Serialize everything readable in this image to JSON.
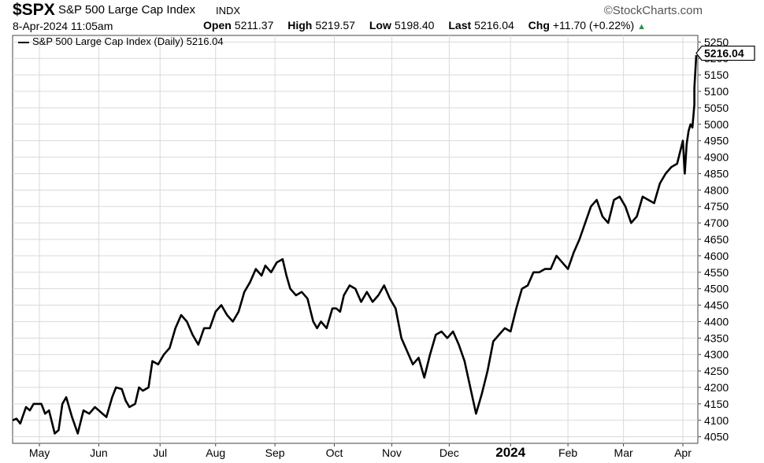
{
  "header": {
    "symbol": "$SPX",
    "name": "S&P 500 Large Cap Index",
    "exchange": "INDX",
    "brand": "©StockCharts.com",
    "date": "8-Apr-2024 11:05am",
    "open_label": "Open",
    "open": "5211.37",
    "high_label": "High",
    "high": "5219.57",
    "low_label": "Low",
    "low": "5198.40",
    "last_label": "Last",
    "last": "5216.04",
    "chg_label": "Chg",
    "chg": "+11.70 (+0.22%)"
  },
  "colors": {
    "line": "#000000",
    "grid": "#d9d9d9",
    "up_arrow": "#2e8b57"
  },
  "chart_data": {
    "type": "line",
    "legend": "S&P 500 Large Cap Index (Daily) 5216.04",
    "last_label": "5216.04",
    "ylim": [
      4030,
      5270
    ],
    "yticks": [
      4050,
      4100,
      4150,
      4200,
      4250,
      4300,
      4350,
      4400,
      4450,
      4500,
      4550,
      4600,
      4650,
      4700,
      4750,
      4800,
      4850,
      4900,
      4950,
      5000,
      5050,
      5100,
      5150,
      5200,
      5250
    ],
    "xlim": [
      "2023-04-17",
      "2024-04-08"
    ],
    "xticks": [
      {
        "label": "May",
        "date": "2023-05-01",
        "bold": false
      },
      {
        "label": "Jun",
        "date": "2023-06-01",
        "bold": false
      },
      {
        "label": "Jul",
        "date": "2023-07-03",
        "bold": false
      },
      {
        "label": "Aug",
        "date": "2023-08-01",
        "bold": false
      },
      {
        "label": "Sep",
        "date": "2023-09-01",
        "bold": false
      },
      {
        "label": "Oct",
        "date": "2023-10-02",
        "bold": false
      },
      {
        "label": "Nov",
        "date": "2023-11-01",
        "bold": false
      },
      {
        "label": "Dec",
        "date": "2023-12-01",
        "bold": false
      },
      {
        "label": "2024",
        "date": "2024-01-02",
        "bold": true
      },
      {
        "label": "Feb",
        "date": "2024-02-01",
        "bold": false
      },
      {
        "label": "Mar",
        "date": "2024-03-01",
        "bold": false
      },
      {
        "label": "Apr",
        "date": "2024-04-01",
        "bold": false
      }
    ],
    "series": [
      {
        "values": [
          [
            "2023-04-17",
            4100
          ],
          [
            "2023-04-19",
            4105
          ],
          [
            "2023-04-21",
            4090
          ],
          [
            "2023-04-24",
            4140
          ],
          [
            "2023-04-26",
            4130
          ],
          [
            "2023-04-28",
            4150
          ],
          [
            "2023-05-02",
            4150
          ],
          [
            "2023-05-04",
            4120
          ],
          [
            "2023-05-06",
            4130
          ],
          [
            "2023-05-09",
            4060
          ],
          [
            "2023-05-11",
            4070
          ],
          [
            "2023-05-13",
            4150
          ],
          [
            "2023-05-15",
            4170
          ],
          [
            "2023-05-18",
            4110
          ],
          [
            "2023-05-21",
            4060
          ],
          [
            "2023-05-24",
            4130
          ],
          [
            "2023-05-27",
            4120
          ],
          [
            "2023-05-30",
            4140
          ],
          [
            "2023-06-02",
            4125
          ],
          [
            "2023-06-05",
            4110
          ],
          [
            "2023-06-08",
            4170
          ],
          [
            "2023-06-10",
            4200
          ],
          [
            "2023-06-13",
            4195
          ],
          [
            "2023-06-15",
            4160
          ],
          [
            "2023-06-17",
            4140
          ],
          [
            "2023-06-20",
            4150
          ],
          [
            "2023-06-22",
            4200
          ],
          [
            "2023-06-24",
            4190
          ],
          [
            "2023-06-27",
            4200
          ],
          [
            "2023-06-29",
            4280
          ],
          [
            "2023-07-02",
            4270
          ],
          [
            "2023-07-05",
            4300
          ],
          [
            "2023-07-08",
            4320
          ],
          [
            "2023-07-11",
            4380
          ],
          [
            "2023-07-14",
            4420
          ],
          [
            "2023-07-17",
            4400
          ],
          [
            "2023-07-20",
            4360
          ],
          [
            "2023-07-23",
            4330
          ],
          [
            "2023-07-26",
            4380
          ],
          [
            "2023-07-29",
            4380
          ],
          [
            "2023-08-01",
            4430
          ],
          [
            "2023-08-04",
            4450
          ],
          [
            "2023-08-07",
            4420
          ],
          [
            "2023-08-10",
            4400
          ],
          [
            "2023-08-13",
            4430
          ],
          [
            "2023-08-16",
            4490
          ],
          [
            "2023-08-19",
            4520
          ],
          [
            "2023-08-22",
            4560
          ],
          [
            "2023-08-25",
            4540
          ],
          [
            "2023-08-27",
            4570
          ],
          [
            "2023-08-30",
            4550
          ],
          [
            "2023-09-02",
            4580
          ],
          [
            "2023-09-05",
            4590
          ],
          [
            "2023-09-07",
            4540
          ],
          [
            "2023-09-09",
            4500
          ],
          [
            "2023-09-12",
            4480
          ],
          [
            "2023-09-15",
            4490
          ],
          [
            "2023-09-18",
            4470
          ],
          [
            "2023-09-21",
            4400
          ],
          [
            "2023-09-23",
            4380
          ],
          [
            "2023-09-25",
            4400
          ],
          [
            "2023-09-28",
            4380
          ],
          [
            "2023-10-01",
            4440
          ],
          [
            "2023-10-03",
            4440
          ],
          [
            "2023-10-05",
            4430
          ],
          [
            "2023-10-07",
            4480
          ],
          [
            "2023-10-10",
            4510
          ],
          [
            "2023-10-13",
            4500
          ],
          [
            "2023-10-16",
            4460
          ],
          [
            "2023-10-19",
            4490
          ],
          [
            "2023-10-22",
            4460
          ],
          [
            "2023-10-25",
            4480
          ],
          [
            "2023-10-28",
            4510
          ],
          [
            "2023-10-31",
            4470
          ],
          [
            "2023-11-03",
            4440
          ],
          [
            "2023-11-06",
            4350
          ],
          [
            "2023-11-09",
            4310
          ],
          [
            "2023-11-12",
            4270
          ],
          [
            "2023-11-15",
            4290
          ],
          [
            "2023-11-18",
            4230
          ],
          [
            "2023-11-21",
            4300
          ],
          [
            "2023-11-24",
            4360
          ],
          [
            "2023-11-27",
            4370
          ],
          [
            "2023-11-30",
            4350
          ],
          [
            "2023-12-03",
            4370
          ],
          [
            "2023-12-06",
            4330
          ],
          [
            "2023-12-09",
            4280
          ],
          [
            "2023-12-12",
            4200
          ],
          [
            "2023-12-15",
            4120
          ],
          [
            "2023-12-18",
            4180
          ],
          [
            "2023-12-21",
            4250
          ],
          [
            "2023-12-24",
            4340
          ],
          [
            "2023-12-27",
            4360
          ],
          [
            "2023-12-30",
            4380
          ],
          [
            "2024-01-02",
            4370
          ],
          [
            "2024-01-05",
            4440
          ],
          [
            "2024-01-08",
            4500
          ],
          [
            "2024-01-11",
            4510
          ],
          [
            "2024-01-14",
            4550
          ],
          [
            "2024-01-17",
            4550
          ],
          [
            "2024-01-20",
            4560
          ],
          [
            "2024-01-23",
            4560
          ],
          [
            "2024-01-26",
            4600
          ],
          [
            "2024-01-29",
            4580
          ],
          [
            "2024-02-01",
            4560
          ],
          [
            "2024-02-04",
            4610
          ],
          [
            "2024-02-07",
            4650
          ],
          [
            "2024-02-10",
            4700
          ],
          [
            "2024-02-13",
            4750
          ],
          [
            "2024-02-16",
            4770
          ],
          [
            "2024-02-19",
            4720
          ],
          [
            "2024-02-22",
            4700
          ],
          [
            "2024-02-25",
            4770
          ],
          [
            "2024-02-28",
            4780
          ],
          [
            "2024-03-02",
            4750
          ],
          [
            "2024-03-05",
            4700
          ],
          [
            "2024-03-08",
            4720
          ],
          [
            "2024-03-11",
            4780
          ],
          [
            "2024-03-14",
            4770
          ],
          [
            "2024-03-17",
            4760
          ],
          [
            "2024-03-20",
            4820
          ],
          [
            "2024-03-23",
            4850
          ],
          [
            "2024-03-26",
            4870
          ],
          [
            "2024-03-29",
            4880
          ],
          [
            "2024-04-01",
            4950
          ],
          [
            "2024-04-02",
            4850
          ],
          [
            "2024-04-03",
            4940
          ],
          [
            "2024-04-04",
            4980
          ],
          [
            "2024-04-05",
            5000
          ],
          [
            "2024-04-06",
            4990
          ],
          [
            "2024-04-07",
            5060
          ],
          [
            "2024-04-07",
            5100
          ],
          [
            "2024-04-07",
            5110
          ],
          [
            "2024-04-08",
            5210
          ]
        ]
      }
    ]
  }
}
